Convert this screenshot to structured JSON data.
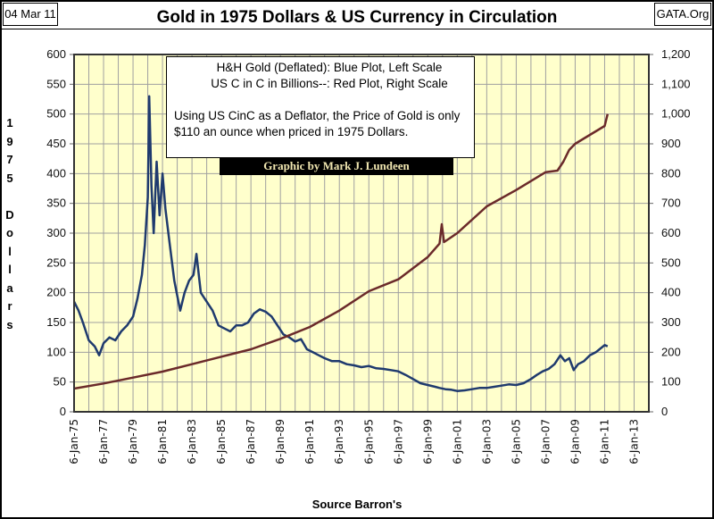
{
  "header": {
    "date": "04 Mar 11",
    "site": "GATA.Org",
    "title": "Gold in 1975 Dollars & US Currency in Circulation"
  },
  "legend": {
    "line1": "H&H Gold (Deflated): Blue Plot, Left Scale",
    "line2": "US C in C in Billions--: Red Plot, Right Scale",
    "line3": "Using US CinC as a Deflator, the Price of Gold is only",
    "line4": "$110 an ounce when priced in 1975 Dollars."
  },
  "credit": "Graphic by Mark J. Lundeen",
  "source": "Source Barron's",
  "colors": {
    "plot_bg": "#ffffcc",
    "gold_line": "#1f3a6e",
    "currency_line": "#6b2a2a",
    "grid": "#a0a0a0"
  },
  "chart_data": {
    "type": "line",
    "title": "Gold in 1975 Dollars & US Currency in Circulation",
    "xlabel": "Source Barron's",
    "ylabel": "1975 Dollars",
    "y2label": "US C in C in Billions",
    "xlim": [
      1975.0,
      2014.0
    ],
    "ylim": [
      0,
      600
    ],
    "y2lim": [
      0,
      1200
    ],
    "grid": true,
    "legend_position": "top-center",
    "x_ticks": [
      "6-Jan-75",
      "6-Jan-77",
      "6-Jan-79",
      "6-Jan-81",
      "6-Jan-83",
      "6-Jan-85",
      "6-Jan-87",
      "6-Jan-89",
      "6-Jan-91",
      "6-Jan-93",
      "6-Jan-95",
      "6-Jan-97",
      "6-Jan-99",
      "6-Jan-01",
      "6-Jan-03",
      "6-Jan-05",
      "6-Jan-07",
      "6-Jan-09",
      "6-Jan-11",
      "6-Jan-13"
    ],
    "y_ticks": [
      "0",
      "50",
      "100",
      "150",
      "200",
      "250",
      "300",
      "350",
      "400",
      "450",
      "500",
      "550",
      "600"
    ],
    "y2_ticks": [
      "0",
      "100",
      "200",
      "300",
      "400",
      "500",
      "600",
      "700",
      "800",
      "900",
      "1,000",
      "1,100",
      "1,200"
    ],
    "ylabel_chars": [
      "1",
      "9",
      "7",
      "5",
      "",
      "D",
      "o",
      "l",
      "l",
      "a",
      "r",
      "s"
    ],
    "series": [
      {
        "name": "H&H Gold (Deflated)",
        "axis": "left",
        "color": "#1f3a6e",
        "x": [
          1975.0,
          1975.3,
          1975.6,
          1976.0,
          1976.4,
          1976.7,
          1977.0,
          1977.4,
          1977.8,
          1978.2,
          1978.6,
          1979.0,
          1979.3,
          1979.6,
          1979.8,
          1980.0,
          1980.1,
          1980.25,
          1980.4,
          1980.6,
          1980.8,
          1981.0,
          1981.2,
          1981.5,
          1981.8,
          1982.2,
          1982.5,
          1982.8,
          1983.1,
          1983.3,
          1983.6,
          1984.0,
          1984.4,
          1984.8,
          1985.2,
          1985.6,
          1986.0,
          1986.4,
          1986.8,
          1987.2,
          1987.6,
          1988.0,
          1988.4,
          1988.8,
          1989.2,
          1989.6,
          1990.0,
          1990.4,
          1990.8,
          1991.2,
          1991.6,
          1992.0,
          1992.5,
          1993.0,
          1993.5,
          1994.0,
          1994.5,
          1995.0,
          1995.5,
          1996.0,
          1996.5,
          1997.0,
          1997.5,
          1998.0,
          1998.5,
          1999.0,
          1999.5,
          1999.8,
          2000.2,
          2000.6,
          2001.0,
          2001.5,
          2002.0,
          2002.5,
          2003.0,
          2003.5,
          2004.0,
          2004.5,
          2005.0,
          2005.5,
          2006.0,
          2006.4,
          2006.8,
          2007.2,
          2007.6,
          2008.0,
          2008.3,
          2008.6,
          2008.9,
          2009.2,
          2009.6,
          2010.0,
          2010.4,
          2010.8,
          2011.0,
          2011.2
        ],
        "y": [
          185,
          170,
          150,
          120,
          110,
          95,
          115,
          125,
          120,
          135,
          145,
          160,
          190,
          230,
          280,
          360,
          530,
          380,
          300,
          420,
          330,
          400,
          340,
          280,
          220,
          170,
          200,
          220,
          230,
          265,
          200,
          185,
          170,
          145,
          140,
          135,
          145,
          145,
          150,
          165,
          172,
          168,
          160,
          145,
          130,
          125,
          118,
          122,
          105,
          100,
          95,
          90,
          85,
          85,
          80,
          78,
          75,
          77,
          73,
          72,
          70,
          68,
          62,
          55,
          48,
          45,
          42,
          40,
          38,
          37,
          35,
          36,
          38,
          40,
          40,
          42,
          44,
          46,
          45,
          48,
          55,
          62,
          68,
          72,
          80,
          95,
          85,
          90,
          70,
          80,
          85,
          95,
          100,
          108,
          112,
          110
        ]
      },
      {
        "name": "US C in C in Billions",
        "axis": "right",
        "color": "#6b2a2a",
        "x": [
          1975.0,
          1977.0,
          1979.0,
          1981.0,
          1983.0,
          1985.0,
          1987.0,
          1989.0,
          1991.0,
          1993.0,
          1995.0,
          1997.0,
          1999.0,
          1999.8,
          1999.95,
          2000.1,
          2001.0,
          2003.0,
          2005.0,
          2007.0,
          2007.8,
          2008.2,
          2008.6,
          2009.0,
          2010.0,
          2011.0,
          2011.2
        ],
        "y": [
          78,
          95,
          115,
          135,
          160,
          185,
          210,
          245,
          285,
          340,
          405,
          445,
          520,
          565,
          630,
          570,
          600,
          690,
          745,
          805,
          810,
          840,
          880,
          900,
          930,
          960,
          1000
        ]
      }
    ]
  }
}
